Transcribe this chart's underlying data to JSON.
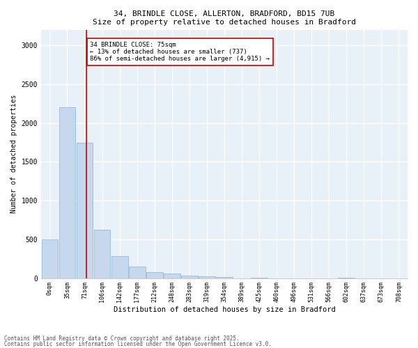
{
  "title_line1": "34, BRINDLE CLOSE, ALLERTON, BRADFORD, BD15 7UB",
  "title_line2": "Size of property relative to detached houses in Bradford",
  "xlabel": "Distribution of detached houses by size in Bradford",
  "ylabel": "Number of detached properties",
  "bar_color": "#c5d8ed",
  "bar_edge_color": "#8ab4d4",
  "background_color": "#e8f0f8",
  "grid_color": "#ffffff",
  "categories": [
    "0sqm",
    "35sqm",
    "71sqm",
    "106sqm",
    "142sqm",
    "177sqm",
    "212sqm",
    "248sqm",
    "283sqm",
    "319sqm",
    "354sqm",
    "389sqm",
    "425sqm",
    "460sqm",
    "496sqm",
    "531sqm",
    "566sqm",
    "602sqm",
    "637sqm",
    "673sqm",
    "708sqm"
  ],
  "bar_heights": [
    500,
    2200,
    1750,
    620,
    280,
    150,
    80,
    55,
    30,
    20,
    15,
    0,
    5,
    0,
    0,
    0,
    0,
    3,
    0,
    0,
    0
  ],
  "ylim": [
    0,
    3200
  ],
  "yticks": [
    0,
    500,
    1000,
    1500,
    2000,
    2500,
    3000
  ],
  "property_line_bin": 2,
  "annotation_text": "34 BRINDLE CLOSE: 75sqm\n← 13% of detached houses are smaller (737)\n86% of semi-detached houses are larger (4,915) →",
  "annotation_box_color": "#ffffff",
  "annotation_box_edge_color": "#cc0000",
  "red_line_color": "#cc0000",
  "footer_line1": "Contains HM Land Registry data © Crown copyright and database right 2025.",
  "footer_line2": "Contains public sector information licensed under the Open Government Licence v3.0."
}
